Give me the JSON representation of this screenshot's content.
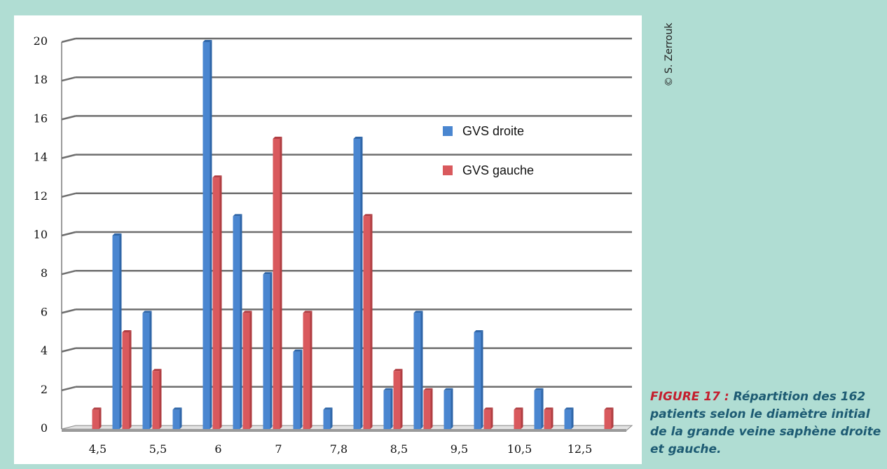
{
  "copyright": "© S. Zerrouk",
  "caption": {
    "label": "FIGURE 17 :",
    "text": "Répartition des 162 patients selon le diamètre initial de la grande veine saphène droite et gauche."
  },
  "colors": {
    "series_right": "#4a86d0",
    "series_left": "#d9595d",
    "background": "#b0ddd3",
    "caption_label": "#c41e2e",
    "caption_text": "#1d5b73"
  },
  "chart_data": {
    "type": "bar",
    "categories": [
      "4,5",
      "",
      "5,5",
      "",
      "6",
      "",
      "7",
      "",
      "7,8",
      "",
      "8,5",
      "",
      "9,5",
      "",
      "10,5",
      "",
      "12,5",
      ""
    ],
    "series": [
      {
        "name": "GVS droite",
        "values": [
          0,
          10,
          6,
          1,
          20,
          11,
          8,
          4,
          1,
          15,
          2,
          6,
          2,
          5,
          0,
          2,
          1,
          0
        ]
      },
      {
        "name": "GVS gauche",
        "values": [
          1,
          5,
          3,
          0,
          13,
          6,
          15,
          6,
          0,
          11,
          3,
          2,
          0,
          1,
          1,
          1,
          0,
          1
        ]
      }
    ],
    "ylim": [
      0,
      20
    ],
    "yticks": [
      0,
      2,
      4,
      6,
      8,
      10,
      12,
      14,
      16,
      18,
      20
    ],
    "ytick_labels": [
      "0",
      "2",
      "4",
      "6",
      "8",
      "10",
      "12",
      "14",
      "16",
      "18",
      "20"
    ],
    "grid": true,
    "legend_position": "right-center"
  }
}
